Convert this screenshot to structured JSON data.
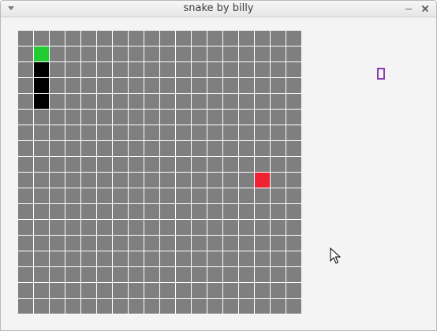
{
  "window": {
    "title": "snake by billy"
  },
  "game": {
    "grid_columns": 18,
    "grid_rows": 18,
    "snake_head": [
      1,
      1
    ],
    "snake_body": [
      [
        1,
        2
      ],
      [
        1,
        3
      ],
      [
        1,
        4
      ]
    ],
    "food": [
      15,
      9
    ]
  },
  "colors": {
    "empty_cell": "#7f7f7f",
    "grid_line": "#ffffff",
    "snake_head": "#22cc33",
    "snake_body": "#000000",
    "food": "#ee2233",
    "indicator": "#8a3fb0"
  },
  "icons": {
    "menu": "chevron-down-icon",
    "minimize": "minimize-icon",
    "close": "close-icon",
    "cursor": "mouse-pointer-icon"
  }
}
